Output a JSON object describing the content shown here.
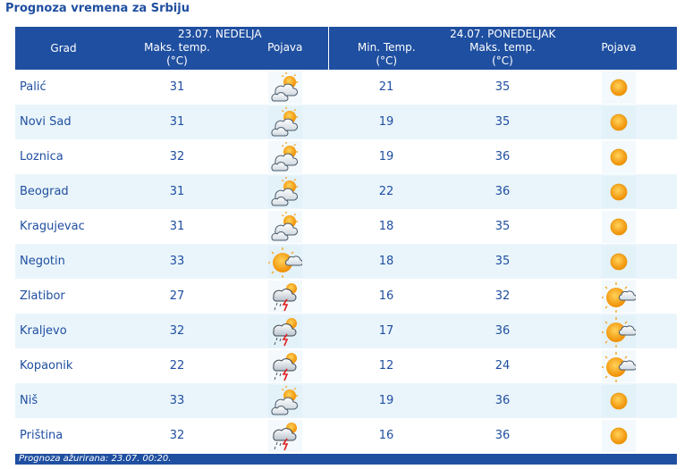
{
  "title": "Prognoza vremena za Srbiju",
  "header": {
    "grad": "Grad",
    "day1": "23.07. NEDELJA",
    "day2": "24.07. PONEDELJAK",
    "max_temp": "Maks. temp.",
    "min_temp": "Min. Temp.",
    "unit": "(°C)",
    "pojava": "Pojava"
  },
  "rows": [
    {
      "city": "Palić",
      "d1_max": "31",
      "d1_icon": "sun-behind-clouds-icon",
      "d2_min": "21",
      "d2_max": "35",
      "d2_icon": "sun-icon"
    },
    {
      "city": "Novi Sad",
      "d1_max": "31",
      "d1_icon": "sun-behind-clouds-icon",
      "d2_min": "19",
      "d2_max": "35",
      "d2_icon": "sun-icon"
    },
    {
      "city": "Loznica",
      "d1_max": "32",
      "d1_icon": "sun-behind-clouds-icon",
      "d2_min": "19",
      "d2_max": "36",
      "d2_icon": "sun-icon"
    },
    {
      "city": "Beograd",
      "d1_max": "31",
      "d1_icon": "sun-behind-clouds-icon",
      "d2_min": "22",
      "d2_max": "36",
      "d2_icon": "sun-icon"
    },
    {
      "city": "Kragujevac",
      "d1_max": "31",
      "d1_icon": "sun-behind-clouds-icon",
      "d2_min": "18",
      "d2_max": "35",
      "d2_icon": "sun-icon"
    },
    {
      "city": "Negotin",
      "d1_max": "33",
      "d1_icon": "mostly-sunny-icon",
      "d2_min": "18",
      "d2_max": "35",
      "d2_icon": "sun-icon"
    },
    {
      "city": "Zlatibor",
      "d1_max": "27",
      "d1_icon": "thunderstorm-icon",
      "d2_min": "16",
      "d2_max": "32",
      "d2_icon": "mostly-sunny-icon"
    },
    {
      "city": "Kraljevo",
      "d1_max": "32",
      "d1_icon": "thunderstorm-icon",
      "d2_min": "17",
      "d2_max": "36",
      "d2_icon": "mostly-sunny-icon"
    },
    {
      "city": "Kopaonik",
      "d1_max": "22",
      "d1_icon": "thunderstorm-icon",
      "d2_min": "12",
      "d2_max": "24",
      "d2_icon": "mostly-sunny-icon"
    },
    {
      "city": "Niš",
      "d1_max": "33",
      "d1_icon": "sun-behind-clouds-icon",
      "d2_min": "19",
      "d2_max": "36",
      "d2_icon": "sun-icon"
    },
    {
      "city": "Priština",
      "d1_max": "32",
      "d1_icon": "thunderstorm-icon",
      "d2_min": "16",
      "d2_max": "36",
      "d2_icon": "sun-icon"
    }
  ],
  "footer": "Prognoza ažurirana:  23.07. 00:20.",
  "colors": {
    "header_bg": "#1f4fa0",
    "text": "#1f4fa0",
    "row_alt": "#eaf5fb",
    "sun": "#f5a623"
  }
}
